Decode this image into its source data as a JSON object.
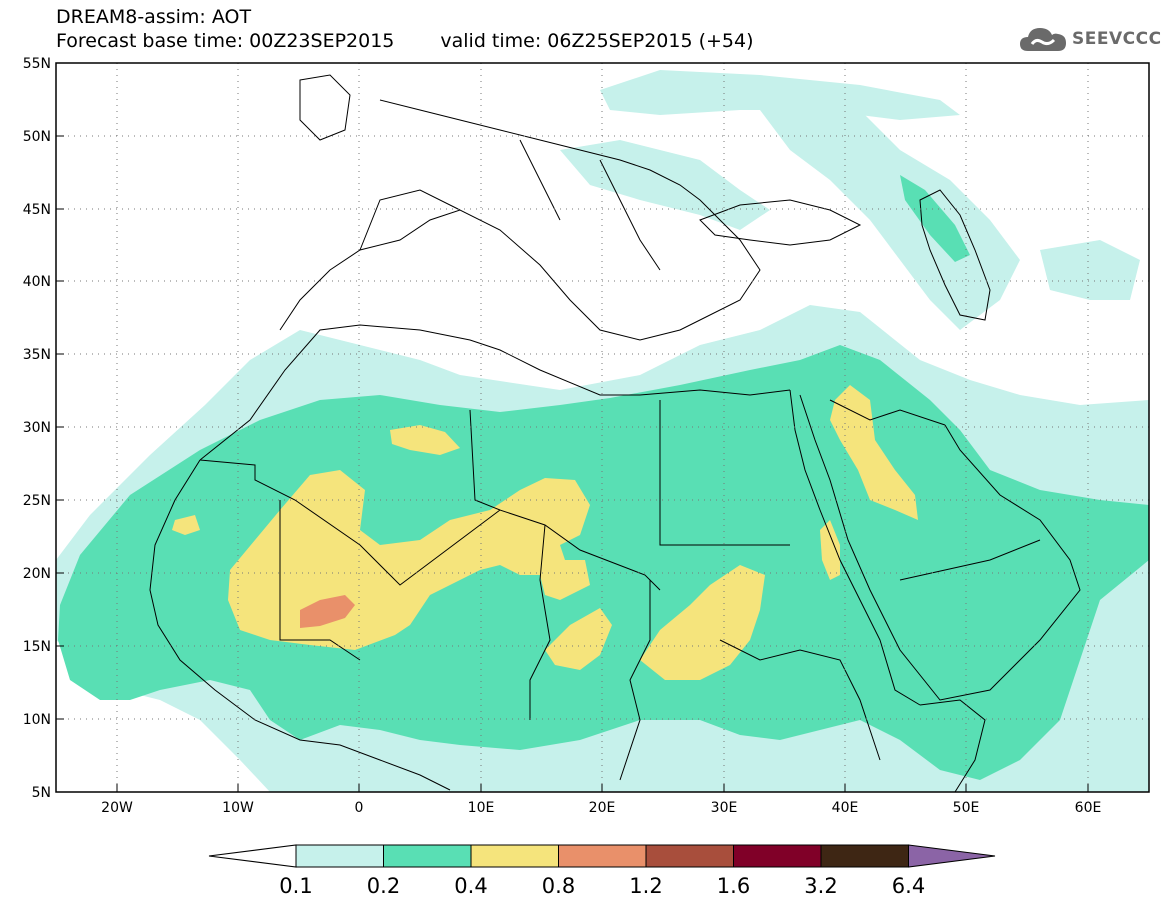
{
  "title": {
    "line1": "DREAM8-assim: AOT",
    "base_time": "Forecast base time: 00Z23SEP2015",
    "valid_time": "valid time: 06Z25SEP2015 (+54)"
  },
  "logo": {
    "text": "SEEVCCC",
    "icon": "cloud-icon",
    "color": "#6a6a6a"
  },
  "map": {
    "lon_range": [
      -25,
      65
    ],
    "lat_range": [
      5,
      55
    ],
    "lat_labels": [
      "5N",
      "10N",
      "15N",
      "20N",
      "25N",
      "30N",
      "35N",
      "40N",
      "45N",
      "50N",
      "55N"
    ],
    "lon_labels": [
      "20W",
      "10W",
      "0",
      "10E",
      "20E",
      "30E",
      "40E",
      "50E",
      "60E"
    ],
    "gridlines": true
  },
  "colorbar": {
    "labels": [
      "0.1",
      "0.2",
      "0.4",
      "0.8",
      "1.2",
      "1.6",
      "3.2",
      "6.4"
    ],
    "colors": [
      "#ffffff",
      "#c6f1eb",
      "#59dfb4",
      "#f5e47c",
      "#e9906a",
      "#a84e3c",
      "#800028",
      "#3e2614",
      "#8b64a6"
    ]
  }
}
